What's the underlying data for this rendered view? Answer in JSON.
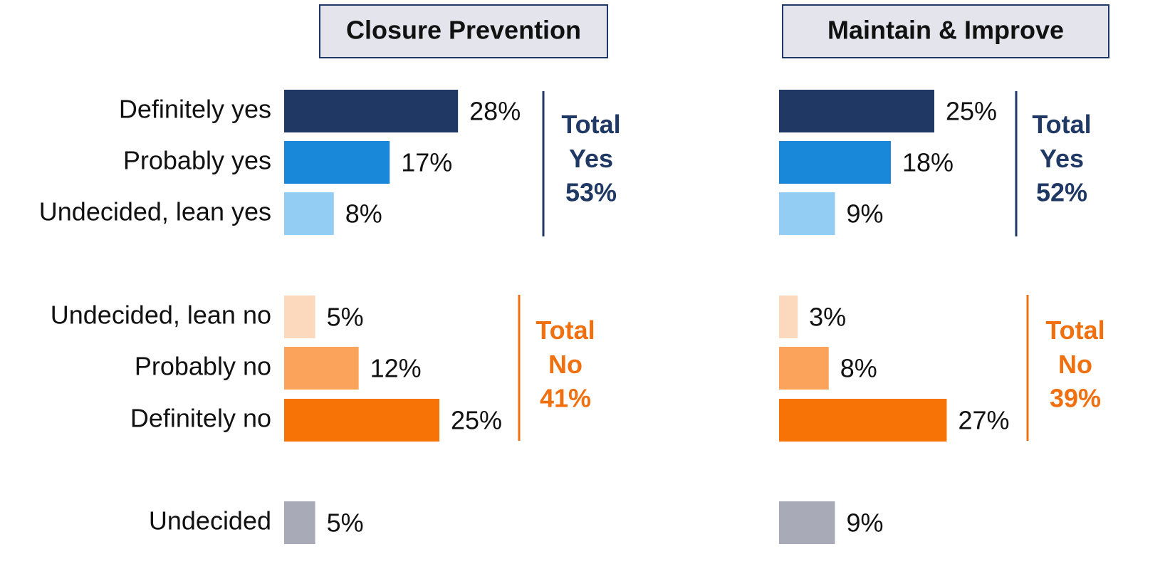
{
  "chart_data": {
    "type": "bar",
    "categories": [
      "Definitely yes",
      "Probably yes",
      "Undecided, lean yes",
      "Undecided, lean no",
      "Probably no",
      "Definitely no",
      "Undecided"
    ],
    "colors": [
      "#1f3864",
      "#1a88d8",
      "#93cdf3",
      "#fcd9bd",
      "#fba35a",
      "#f87306",
      "#a9aab8"
    ],
    "series": [
      {
        "name": "Closure Prevention",
        "values": [
          28,
          17,
          8,
          5,
          12,
          25,
          5
        ],
        "value_labels": [
          "28%",
          "17%",
          "8%",
          "5%",
          "12%",
          "25%",
          "5%"
        ],
        "totals": [
          {
            "label": "Total Yes",
            "value": 53,
            "value_label": "53%",
            "color": "#1f3864"
          },
          {
            "label": "Total No",
            "value": 41,
            "value_label": "41%",
            "color": "#f07010"
          }
        ]
      },
      {
        "name": "Maintain & Improve",
        "values": [
          25,
          18,
          9,
          3,
          8,
          27,
          9
        ],
        "value_labels": [
          "25%",
          "18%",
          "9%",
          "3%",
          "8%",
          "27%",
          "9%"
        ],
        "totals": [
          {
            "label": "Total Yes",
            "value": 52,
            "value_label": "52%",
            "color": "#1f3864"
          },
          {
            "label": "Total No",
            "value": 39,
            "value_label": "39%",
            "color": "#f07010"
          }
        ]
      }
    ]
  }
}
